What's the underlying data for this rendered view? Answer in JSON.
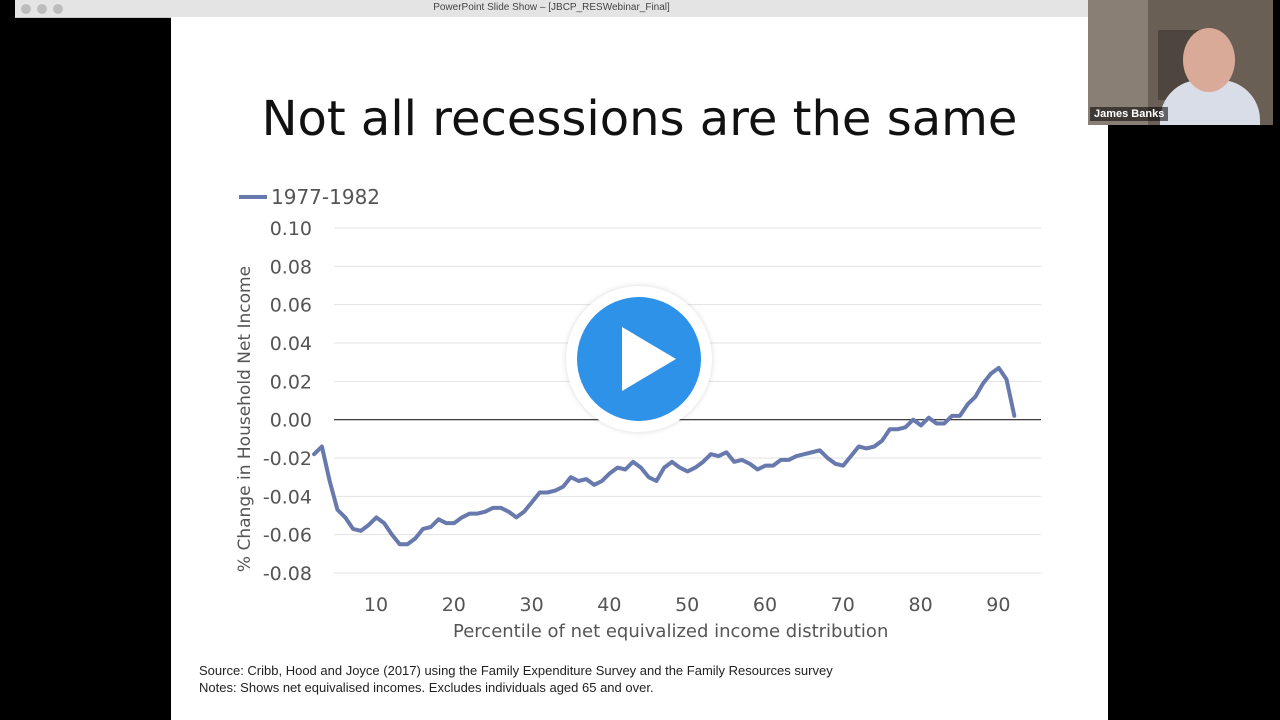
{
  "window": {
    "title": "PowerPoint Slide Show – [JBCP_RESWebinar_Final]"
  },
  "slide": {
    "title": "Not all recessions are the same",
    "source_line": "Source: Cribb, Hood and Joyce (2017) using the Family Expenditure Survey and the Family Resources survey",
    "notes_line": "Notes: Shows net equivalised incomes. Excludes individuals aged 65 and over."
  },
  "webcam": {
    "name": "James Banks"
  },
  "colors": {
    "series": "#6779ad",
    "play_button": "#2e93e8"
  },
  "chart_data": {
    "type": "line",
    "xlabel": "Percentile of net equivalized income distribution",
    "ylabel": "% Change in Household Net Income",
    "ylim": [
      -0.08,
      0.1
    ],
    "xlim": [
      5,
      95
    ],
    "yticks": [
      "0.10",
      "0.08",
      "0.06",
      "0.04",
      "0.02",
      "0.00",
      "-0.02",
      "-0.04",
      "-0.06",
      "-0.08"
    ],
    "xticks": [
      "10",
      "20",
      "30",
      "40",
      "50",
      "60",
      "70",
      "80",
      "90"
    ],
    "grid": true,
    "legend_position": "top-left",
    "series": [
      {
        "name": "1977-1982",
        "x": [
          5,
          6,
          7,
          8,
          9,
          10,
          11,
          12,
          13,
          14,
          15,
          16,
          17,
          18,
          19,
          20,
          21,
          22,
          23,
          24,
          25,
          26,
          27,
          28,
          29,
          30,
          31,
          32,
          33,
          34,
          35,
          36,
          37,
          38,
          39,
          40,
          41,
          42,
          43,
          44,
          45,
          46,
          47,
          48,
          49,
          50,
          51,
          52,
          53,
          54,
          55,
          56,
          57,
          58,
          59,
          60,
          61,
          62,
          63,
          64,
          65,
          66,
          67,
          68,
          69,
          70,
          71,
          72,
          73,
          74,
          75,
          76,
          77,
          78,
          79,
          80,
          81,
          82,
          83,
          84,
          85,
          86,
          87,
          88,
          89,
          90,
          91,
          92,
          93,
          94,
          95
        ],
        "values": [
          -0.018,
          -0.014,
          -0.032,
          -0.047,
          -0.051,
          -0.057,
          -0.058,
          -0.055,
          -0.051,
          -0.054,
          -0.06,
          -0.065,
          -0.065,
          -0.062,
          -0.057,
          -0.056,
          -0.052,
          -0.054,
          -0.054,
          -0.051,
          -0.049,
          -0.049,
          -0.048,
          -0.046,
          -0.046,
          -0.048,
          -0.051,
          -0.048,
          -0.043,
          -0.038,
          -0.038,
          -0.037,
          -0.035,
          -0.03,
          -0.032,
          -0.031,
          -0.034,
          -0.032,
          -0.028,
          -0.025,
          -0.026,
          -0.022,
          -0.025,
          -0.03,
          -0.032,
          -0.025,
          -0.022,
          -0.025,
          -0.027,
          -0.025,
          -0.022,
          -0.018,
          -0.019,
          -0.017,
          -0.022,
          -0.021,
          -0.023,
          -0.026,
          -0.024,
          -0.024,
          -0.021,
          -0.021,
          -0.019,
          -0.018,
          -0.017,
          -0.016,
          -0.02,
          -0.023,
          -0.024,
          -0.019,
          -0.014,
          -0.015,
          -0.014,
          -0.011,
          -0.005,
          -0.005,
          -0.004,
          0.0,
          -0.003,
          0.001,
          -0.002,
          -0.002,
          0.002,
          0.002,
          0.008,
          0.012,
          0.019,
          0.024,
          0.027,
          0.021,
          0.002
        ]
      }
    ]
  }
}
